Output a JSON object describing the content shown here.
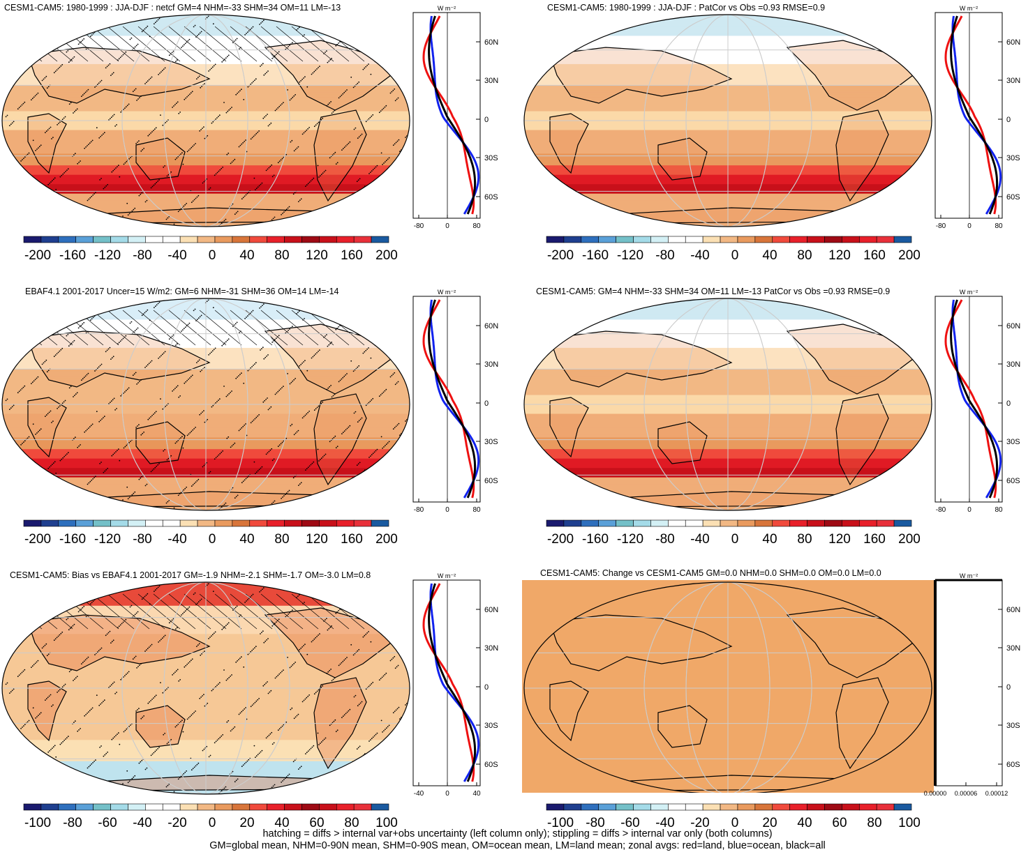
{
  "panels": [
    {
      "id": "p1",
      "title": "CESM1-CAM5: 1980-1999 : JJA-DJF : netcf GM=4 NHM=-33 SHM=34 OM=11 LM=-13",
      "hatching": true,
      "stippling": true,
      "style": "model"
    },
    {
      "id": "p2",
      "title": "CESM1-CAM5: 1980-1999 : JJA-DJF : PatCor vs Obs =0.93 RMSE=0.9",
      "hatching": false,
      "stippling": false,
      "style": "model"
    },
    {
      "id": "p3",
      "title": "EBAF4.1 2001-2017 Uncer=15 W/m2: GM=6 NHM=-31 SHM=36 OM=14 LM=-14",
      "hatching": true,
      "stippling": true,
      "style": "obs"
    },
    {
      "id": "p4",
      "title": "CESM1-CAM5: GM=4 NHM=-33 SHM=34 OM=11 LM=-13 PatCor vs Obs =0.93 RMSE=0.9",
      "hatching": false,
      "stippling": false,
      "style": "model"
    },
    {
      "id": "p5",
      "title": "CESM1-CAM5: Bias vs EBAF4.1 2001-2017 GM=-1.9 NHM=-2.1 SHM=-1.7 OM=-3.0 LM=0.8",
      "hatching": true,
      "stippling": true,
      "style": "bias"
    },
    {
      "id": "p6",
      "title": "CESM1-CAM5: Change vs CESM1-CAM5 GM=0.0 NHM=0.0 SHM=0.0 OM=0.0 LM=0.0",
      "hatching": false,
      "stippling": false,
      "style": "flat"
    }
  ],
  "zonal_unit": "W m⁻²",
  "lat_labels": [
    "60N",
    "30N",
    "0",
    "30S",
    "60S"
  ],
  "zonal_xticks_a": [
    "-80",
    "0",
    "80"
  ],
  "zonal_xticks_b": [
    "-40",
    "0",
    "40"
  ],
  "zonal_xticks_c": [
    "0.00000",
    "0.00006",
    "0.00012"
  ],
  "colorbar_labels_a": [
    "-200",
    "-160",
    "-120",
    "-80",
    "-40",
    "0",
    "40",
    "80",
    "120",
    "160",
    "200"
  ],
  "colorbar_labels_b": [
    "-100",
    "-80",
    "-60",
    "-40",
    "-20",
    "0",
    "20",
    "40",
    "60",
    "80",
    "100"
  ],
  "colorbar_colors": [
    "#1a1a6e",
    "#1f3f8f",
    "#2e6fbd",
    "#5aa0d8",
    "#74c0c8",
    "#a4dbe8",
    "#d3f0f5",
    "#ffffff",
    "#ffffff",
    "#fbe0b4",
    "#f2b884",
    "#e99a5e",
    "#d8753a",
    "#f04a3c",
    "#e8202a",
    "#c8101a",
    "#9e0a14",
    "#c8101a",
    "#e8202a",
    "#e8303a",
    "#1a5aa0"
  ],
  "legend": {
    "series": [
      {
        "name": "red=land",
        "color": "#ee1111"
      },
      {
        "name": "blue=ocean",
        "color": "#1122ee"
      },
      {
        "name": "black=all",
        "color": "#000000"
      }
    ]
  },
  "footnote_line1": "hatching = diffs > internal var+obs uncertainty (left column only); stippling = diffs > internal var only (both columns)",
  "footnote_line2": "GM=global mean, NHM=0-90N mean, SHM=0-90S mean, OM=ocean mean, LM=land mean; zonal avgs: red=land, blue=ocean, black=all"
}
